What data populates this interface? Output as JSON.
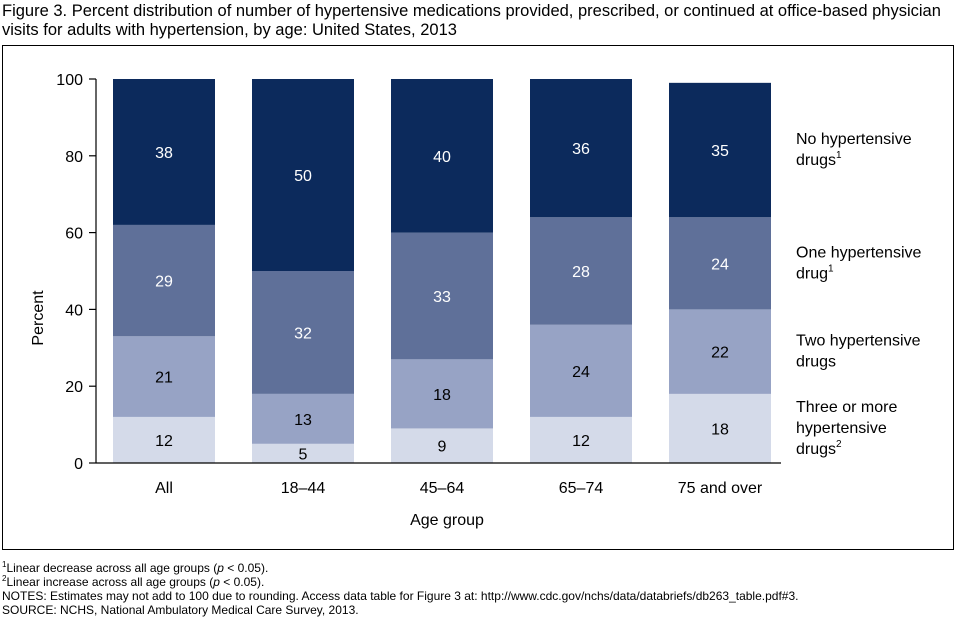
{
  "title": "Figure 3. Percent distribution of number of hypertensive medications provided, prescribed, or continued at office-based physician visits for adults with hypertension, by age: United States, 2013",
  "chart_data": {
    "type": "bar",
    "stacked": true,
    "categories": [
      "All",
      "18–44",
      "45–64",
      "65–74",
      "75 and over"
    ],
    "xlabel": "Age group",
    "ylabel": "Percent",
    "ylim": [
      0,
      100
    ],
    "yticks": [
      "0",
      "20",
      "40",
      "60",
      "80",
      "100"
    ],
    "grid": false,
    "legend_placement": "right",
    "series": [
      {
        "name": "Three or more hypertensive drugs",
        "legend_lines": [
          "Three or more",
          "hypertensive",
          "drugs"
        ],
        "legend_sup": "2",
        "values": [
          12,
          5,
          9,
          12,
          18
        ],
        "color": "#d4dae9",
        "label_color": "#000000"
      },
      {
        "name": "Two hypertensive drugs",
        "legend_lines": [
          "Two hypertensive",
          "drugs"
        ],
        "legend_sup": "",
        "values": [
          21,
          13,
          18,
          24,
          22
        ],
        "color": "#97a3c5",
        "label_color": "#000000"
      },
      {
        "name": "One hypertensive drug",
        "legend_lines": [
          "One hypertensive",
          "drug"
        ],
        "legend_sup": "1",
        "values": [
          29,
          32,
          33,
          28,
          24
        ],
        "color": "#5f7099",
        "label_color": "#ffffff"
      },
      {
        "name": "No hypertensive drugs",
        "legend_lines": [
          "No hypertensive",
          "drugs"
        ],
        "legend_sup": "1",
        "values": [
          38,
          50,
          40,
          36,
          35
        ],
        "color": "#0c2a5c",
        "label_color": "#ffffff"
      }
    ]
  },
  "footnotes": {
    "note1": {
      "sup": "1",
      "pre": "Linear decrease across all age groups (",
      "italic": "p",
      "post": " < 0.05)."
    },
    "note2": {
      "sup": "2",
      "pre": "Linear increase across all age groups (",
      "italic": "p",
      "post": " < 0.05)."
    },
    "notes": "NOTES: Estimates may not add to 100 due to rounding. Access data table for Figure 3 at: http://www.cdc.gov/nchs/data/databriefs/db263_table.pdf#3.",
    "source": "SOURCE: NCHS, National Ambulatory Medical Care Survey, 2013."
  }
}
